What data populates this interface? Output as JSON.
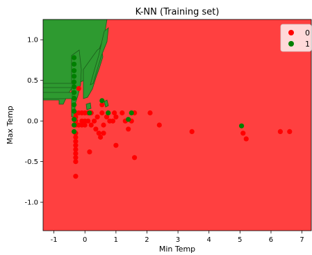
{
  "chart_data": {
    "type": "scatter",
    "title": "K-NN (Training set)",
    "xlabel": "Min Temp",
    "ylabel": "Max Temp",
    "xlim": [
      -1.35,
      7.3
    ],
    "ylim": [
      -1.35,
      1.25
    ],
    "xticks": [
      "-1",
      "0",
      "1",
      "2",
      "3",
      "4",
      "5",
      "6",
      "7"
    ],
    "xtick_values": [
      -1,
      0,
      1,
      2,
      3,
      4,
      5,
      6,
      7
    ],
    "yticks": [
      "1.0",
      "0.5",
      "0.0",
      "-0.5",
      "-1.0"
    ],
    "ytick_values": [
      1.0,
      0.5,
      0.0,
      -0.5,
      -1.0
    ],
    "grid": false,
    "legend_position": "top-right",
    "background_region_color": "#ff4040",
    "class1_region_color": "#2e9a30",
    "series": [
      {
        "name": "0",
        "color": "#ff0000",
        "points": [
          [
            -0.3,
            0.1
          ],
          [
            -0.3,
            0.05
          ],
          [
            -0.3,
            0.0
          ],
          [
            -0.3,
            -0.05
          ],
          [
            -0.3,
            -0.15
          ],
          [
            -0.3,
            -0.2
          ],
          [
            -0.3,
            -0.25
          ],
          [
            -0.3,
            -0.3
          ],
          [
            -0.3,
            -0.35
          ],
          [
            -0.3,
            -0.4
          ],
          [
            -0.3,
            -0.45
          ],
          [
            -0.3,
            -0.5
          ],
          [
            -0.3,
            -0.68
          ],
          [
            -0.2,
            0.4
          ],
          [
            -0.2,
            0.1
          ],
          [
            -0.2,
            -0.05
          ],
          [
            -0.1,
            0.1
          ],
          [
            -0.1,
            0.0
          ],
          [
            -0.1,
            -0.05
          ],
          [
            0.0,
            0.1
          ],
          [
            0.0,
            0.0
          ],
          [
            0.0,
            -0.05
          ],
          [
            0.1,
            0.1
          ],
          [
            0.1,
            0.0
          ],
          [
            0.2,
            0.1
          ],
          [
            0.2,
            -0.05
          ],
          [
            0.3,
            0.0
          ],
          [
            0.35,
            -0.1
          ],
          [
            0.4,
            0.05
          ],
          [
            0.45,
            -0.15
          ],
          [
            0.5,
            -0.2
          ],
          [
            0.55,
            0.1
          ],
          [
            0.6,
            -0.05
          ],
          [
            0.6,
            -0.15
          ],
          [
            0.7,
            0.05
          ],
          [
            0.75,
            0.1
          ],
          [
            0.8,
            0.0
          ],
          [
            0.9,
            0.0
          ],
          [
            0.95,
            0.1
          ],
          [
            1.0,
            0.05
          ],
          [
            1.2,
            0.1
          ],
          [
            1.3,
            0.0
          ],
          [
            1.4,
            -0.1
          ],
          [
            1.5,
            0.0
          ],
          [
            1.6,
            0.1
          ],
          [
            2.1,
            0.1
          ],
          [
            2.4,
            -0.05
          ],
          [
            3.45,
            -0.13
          ],
          [
            5.1,
            -0.15
          ],
          [
            5.2,
            -0.22
          ],
          [
            6.3,
            -0.13
          ],
          [
            6.6,
            -0.13
          ],
          [
            0.15,
            -0.38
          ],
          [
            1.0,
            -0.3
          ],
          [
            1.6,
            -0.45
          ],
          [
            0.55,
            0.2
          ]
        ]
      },
      {
        "name": "1",
        "color": "#008000",
        "points": [
          [
            -0.35,
            0.78
          ],
          [
            -0.35,
            0.7
          ],
          [
            -0.35,
            0.62
          ],
          [
            -0.35,
            0.55
          ],
          [
            -0.35,
            0.48
          ],
          [
            -0.35,
            0.42
          ],
          [
            -0.35,
            0.35
          ],
          [
            -0.35,
            0.28
          ],
          [
            -0.35,
            0.2
          ],
          [
            -0.35,
            0.12
          ],
          [
            -0.35,
            0.02
          ],
          [
            -0.35,
            -0.05
          ],
          [
            -0.35,
            -0.13
          ],
          [
            0.15,
            0.1
          ],
          [
            0.55,
            0.25
          ],
          [
            0.75,
            0.1
          ],
          [
            1.4,
            0.02
          ],
          [
            1.5,
            0.1
          ],
          [
            5.05,
            -0.06
          ]
        ]
      }
    ]
  }
}
